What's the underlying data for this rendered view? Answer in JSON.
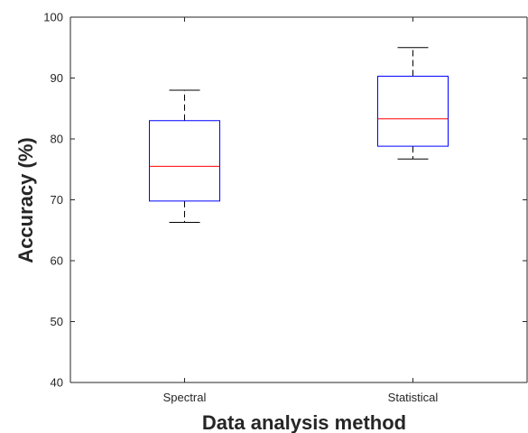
{
  "chart_data": {
    "type": "boxplot",
    "title": "",
    "xlabel": "Data analysis method",
    "ylabel": "Accuracy (%)",
    "ylim": [
      40,
      100
    ],
    "yticks": [
      40,
      50,
      60,
      70,
      80,
      90,
      100
    ],
    "grid": false,
    "categories": [
      "Spectral",
      "Statistical"
    ],
    "boxes": [
      {
        "category": "Spectral",
        "min": 66.3,
        "q1": 69.8,
        "median": 75.5,
        "q3": 83.0,
        "max": 88.0
      },
      {
        "category": "Statistical",
        "min": 76.7,
        "q1": 78.8,
        "median": 83.3,
        "q3": 90.3,
        "max": 95.0
      }
    ],
    "colors": {
      "box": "#0000ff",
      "median": "#ff0000",
      "whisker": "#000000",
      "axis": "#262626"
    }
  }
}
